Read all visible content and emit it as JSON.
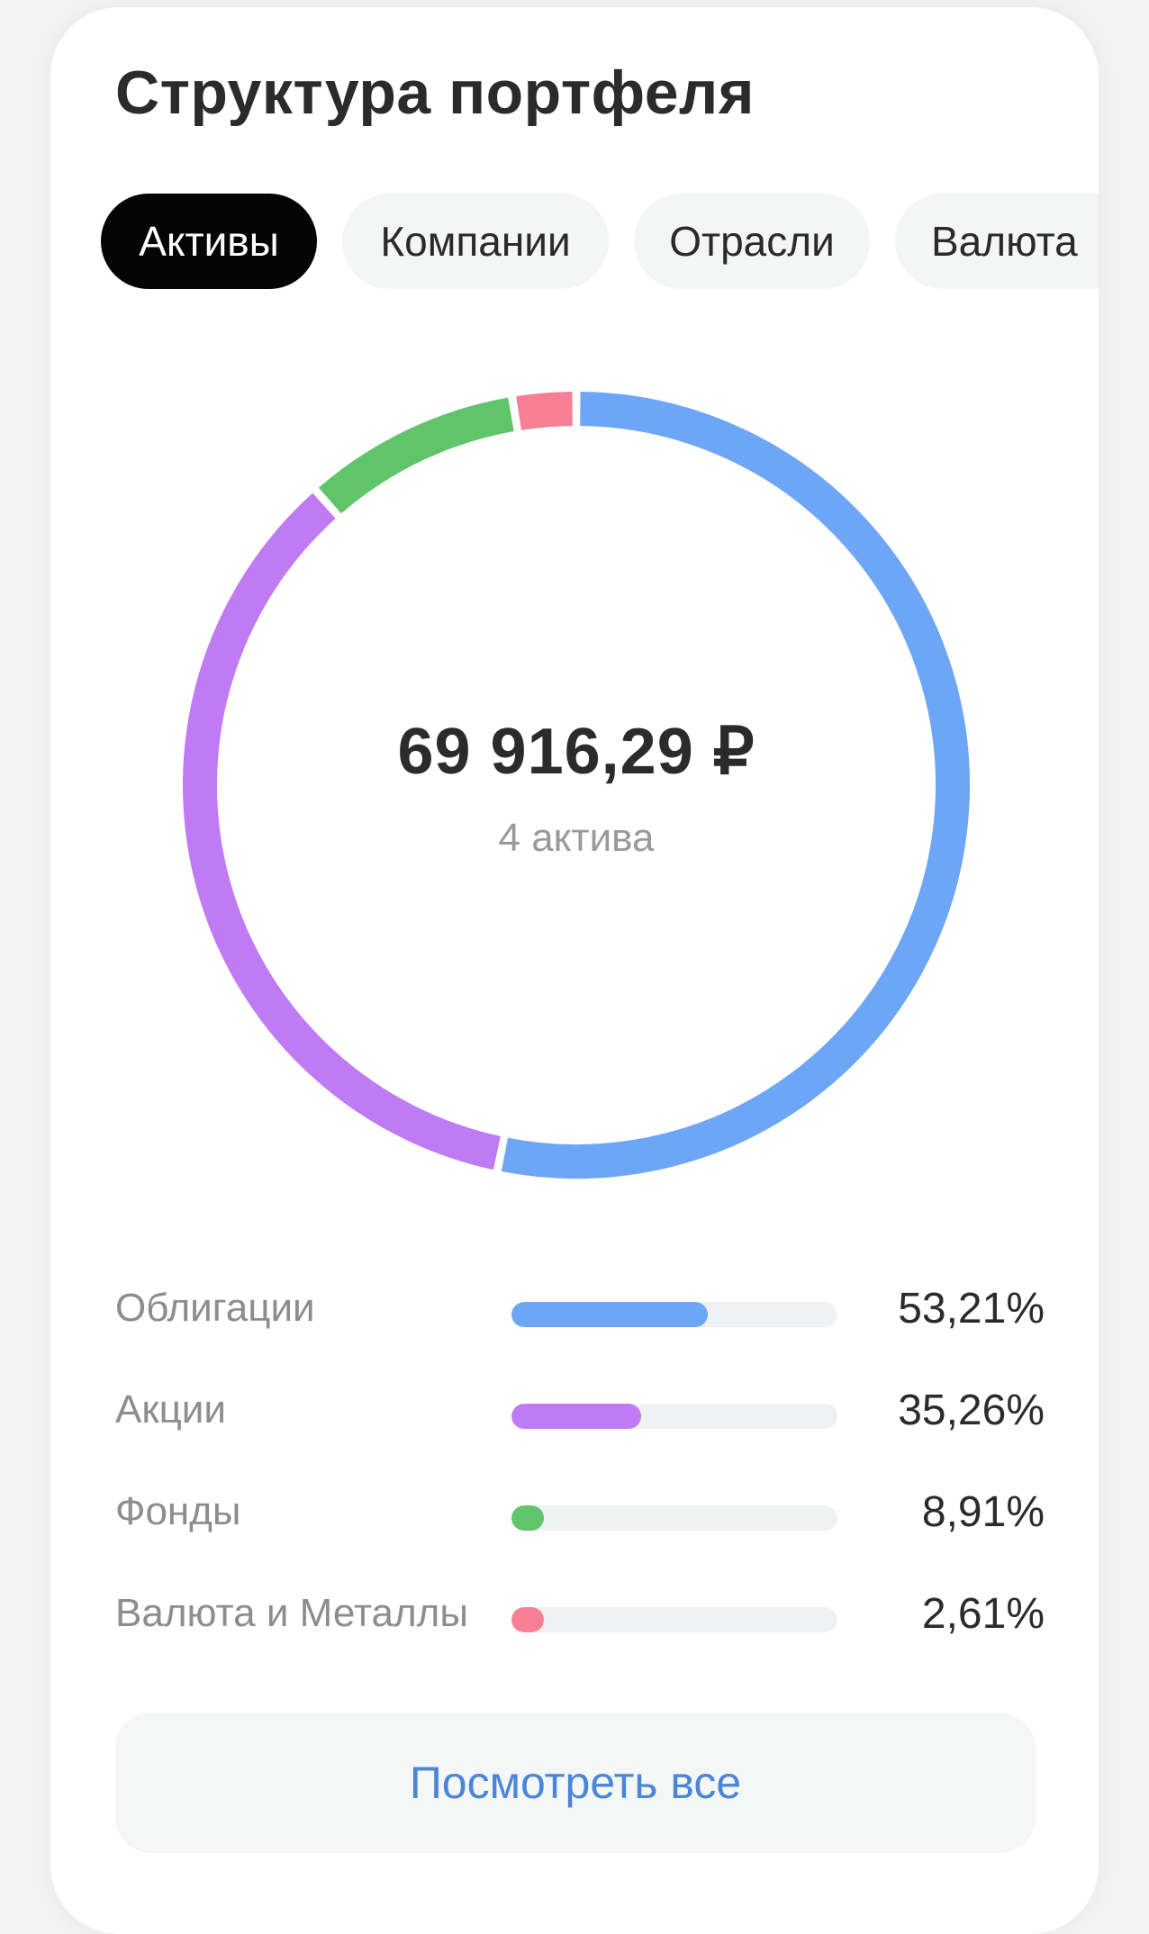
{
  "header": {
    "title": "Структура портфеля"
  },
  "tabs": [
    {
      "label": "Активы",
      "active": true
    },
    {
      "label": "Компании",
      "active": false
    },
    {
      "label": "Отрасли",
      "active": false
    },
    {
      "label": "Валюта",
      "active": false
    }
  ],
  "summary": {
    "total": "69 916,29 ₽",
    "count_label": "4 актива"
  },
  "allocation": [
    {
      "label": "Облигации",
      "percent_text": "53,21%",
      "percent": 53.21,
      "color": "#6ea6f7"
    },
    {
      "label": "Акции",
      "percent_text": "35,26%",
      "percent": 35.26,
      "color": "#c07af4"
    },
    {
      "label": "Фонды",
      "percent_text": "8,91%",
      "percent": 8.91,
      "color": "#5fc46a"
    },
    {
      "label": "Валюта и Металлы",
      "percent_text": "2,61%",
      "percent": 2.61,
      "color": "#f77f95"
    }
  ],
  "footer": {
    "view_all_label": "Посмотреть все",
    "view_all_color": "#4a86d8"
  }
}
